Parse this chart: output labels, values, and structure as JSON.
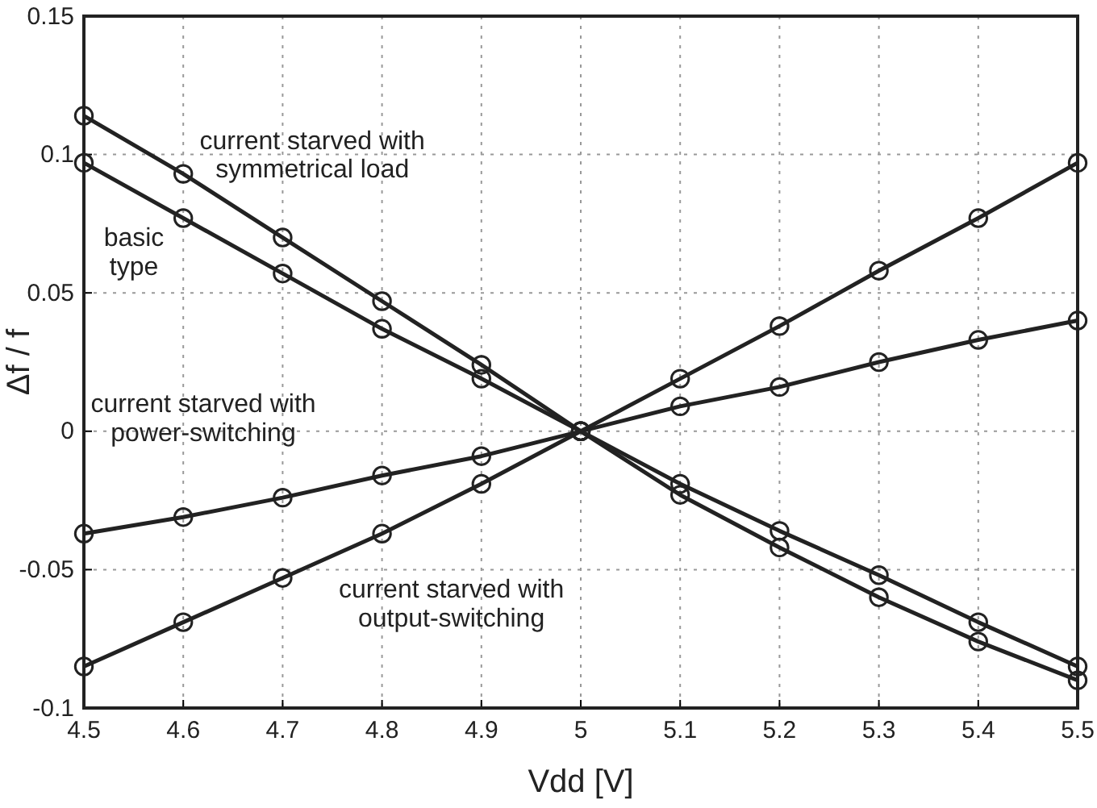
{
  "chart_data": {
    "type": "line",
    "xlabel": "Vdd [V]",
    "ylabel": "Δf / f",
    "x": [
      4.5,
      4.6,
      4.7,
      4.8,
      4.9,
      5.0,
      5.1,
      5.2,
      5.3,
      5.4,
      5.5
    ],
    "series": [
      {
        "name": "current starved with\nsymmetrical load",
        "color": "#222222",
        "values": [
          0.114,
          0.093,
          0.07,
          0.047,
          0.024,
          0,
          -0.023,
          -0.042,
          -0.06,
          -0.076,
          -0.09
        ]
      },
      {
        "name": "basic\ntype",
        "color": "#222222",
        "values": [
          0.097,
          0.077,
          0.057,
          0.037,
          0.019,
          0,
          -0.019,
          -0.036,
          -0.052,
          -0.069,
          -0.085
        ]
      },
      {
        "name": "current starved with\npower-switching",
        "color": "#222222",
        "values": [
          -0.037,
          -0.031,
          -0.024,
          -0.016,
          -0.009,
          0,
          0.009,
          0.016,
          0.025,
          0.033,
          0.04
        ]
      },
      {
        "name": "current starved with\noutput-switching",
        "color": "#222222",
        "values": [
          -0.085,
          -0.069,
          -0.053,
          -0.037,
          -0.019,
          0,
          0.019,
          0.038,
          0.058,
          0.077,
          0.097
        ]
      }
    ],
    "xlim": [
      4.5,
      5.5
    ],
    "xticks": [
      4.5,
      4.6,
      4.7,
      4.8,
      4.9,
      5,
      5.1,
      5.2,
      5.3,
      5.4,
      5.5
    ],
    "ylim": [
      -0.1,
      0.15
    ],
    "yticks": [
      -0.1,
      -0.05,
      0,
      0.05,
      0.1,
      0.15
    ],
    "grid": true,
    "marker": "circle",
    "line_style": "solid"
  }
}
